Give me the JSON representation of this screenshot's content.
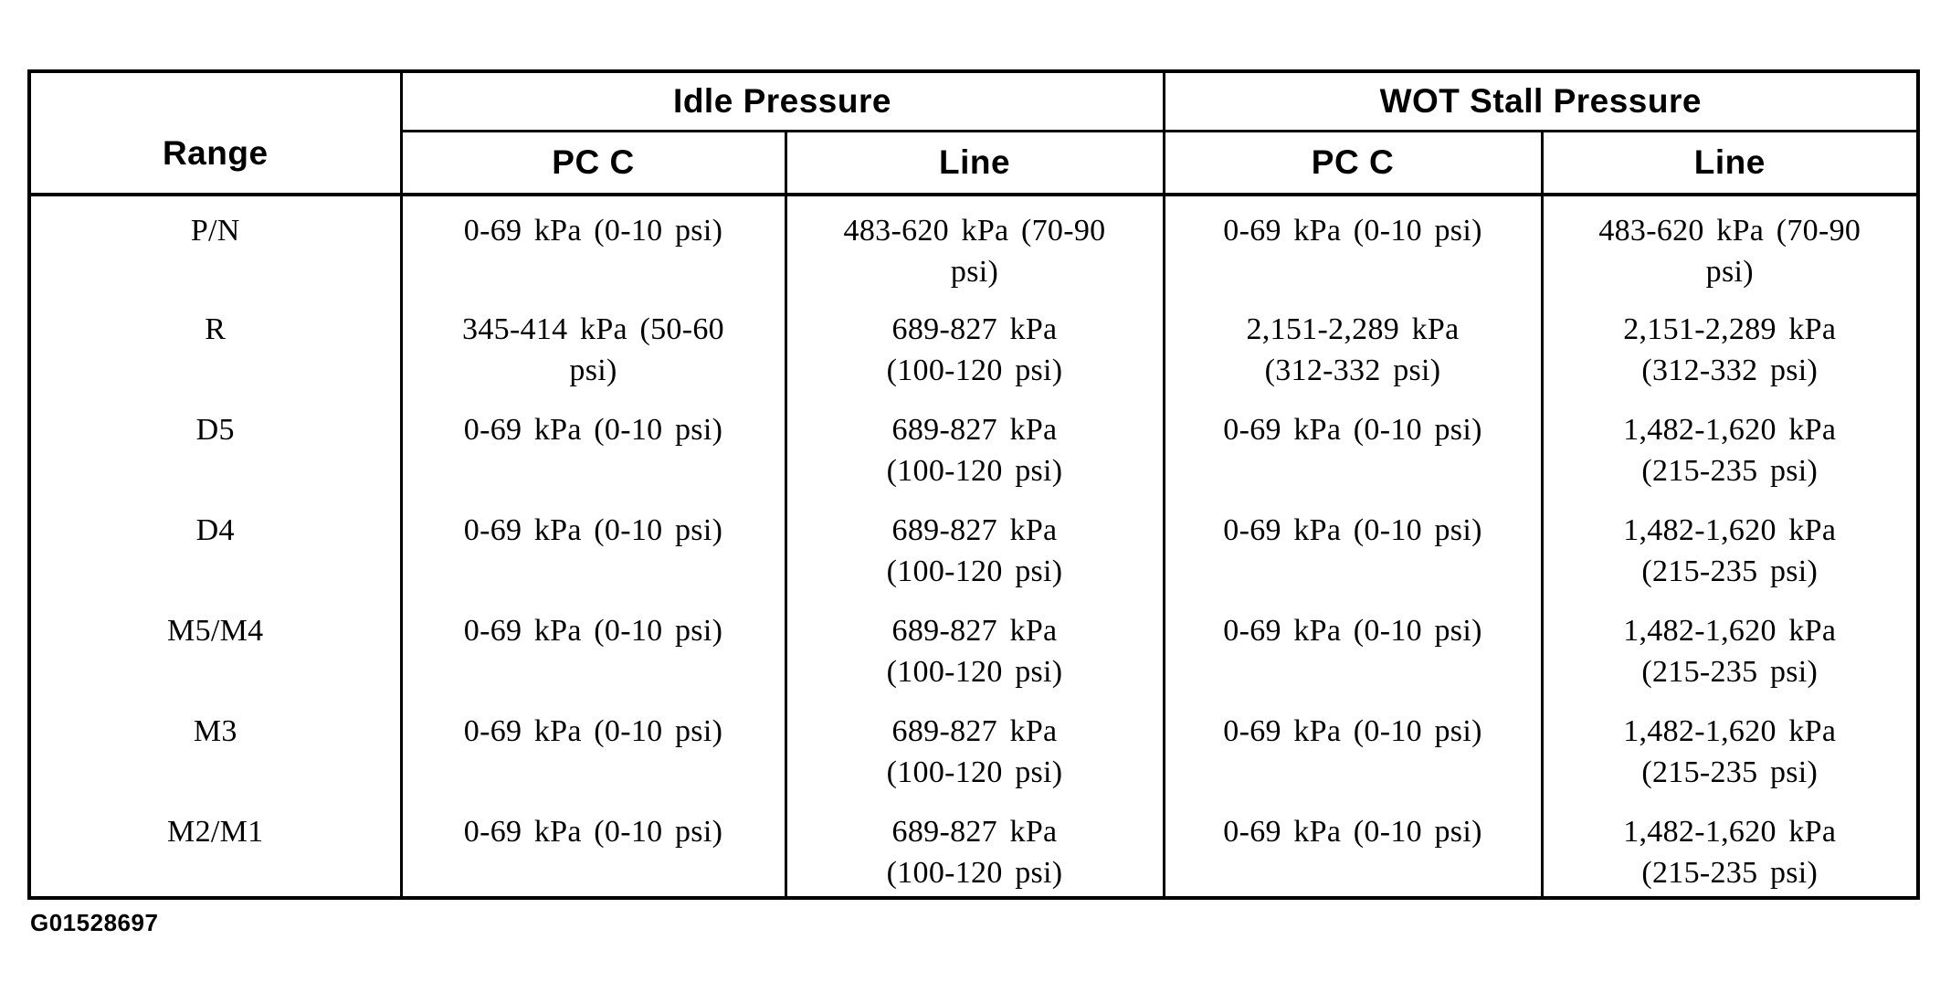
{
  "page": {
    "figure_label": "G01528697"
  },
  "table": {
    "corner_header": "Range",
    "groups": [
      {
        "label": "Idle Pressure"
      },
      {
        "label": "WOT Stall Pressure"
      }
    ],
    "subheaders": [
      "PC C",
      "Line",
      "PC C",
      "Line"
    ],
    "rows": [
      {
        "range": "P/N",
        "idle_pcc": "0-69 kPa (0-10 psi)",
        "idle_line": "483-620 kPa (70-90\npsi)",
        "wot_pcc": "0-69 kPa (0-10 psi)",
        "wot_line": "483-620 kPa (70-90\npsi)"
      },
      {
        "range": "R",
        "idle_pcc": "345-414 kPa (50-60\npsi)",
        "idle_line": "689-827 kPa\n(100-120 psi)",
        "wot_pcc": "2,151-2,289 kPa\n(312-332 psi)",
        "wot_line": "2,151-2,289 kPa\n(312-332 psi)"
      },
      {
        "range": "D5",
        "idle_pcc": "0-69 kPa (0-10 psi)",
        "idle_line": "689-827 kPa\n(100-120 psi)",
        "wot_pcc": "0-69 kPa (0-10 psi)",
        "wot_line": "1,482-1,620 kPa\n(215-235 psi)"
      },
      {
        "range": "D4",
        "idle_pcc": "0-69 kPa (0-10 psi)",
        "idle_line": "689-827 kPa\n(100-120 psi)",
        "wot_pcc": "0-69 kPa (0-10 psi)",
        "wot_line": "1,482-1,620 kPa\n(215-235 psi)"
      },
      {
        "range": "M5/M4",
        "idle_pcc": "0-69 kPa (0-10 psi)",
        "idle_line": "689-827 kPa\n(100-120 psi)",
        "wot_pcc": "0-69 kPa (0-10 psi)",
        "wot_line": "1,482-1,620 kPa\n(215-235 psi)"
      },
      {
        "range": "M3",
        "idle_pcc": "0-69 kPa (0-10 psi)",
        "idle_line": "689-827 kPa\n(100-120 psi)",
        "wot_pcc": "0-69 kPa (0-10 psi)",
        "wot_line": "1,482-1,620 kPa\n(215-235 psi)"
      },
      {
        "range": "M2/M1",
        "idle_pcc": "0-69 kPa (0-10 psi)",
        "idle_line": "689-827 kPa\n(100-120 psi)",
        "wot_pcc": "0-69 kPa (0-10 psi)",
        "wot_line": "1,482-1,620 kPa\n(215-235 psi)"
      }
    ]
  }
}
